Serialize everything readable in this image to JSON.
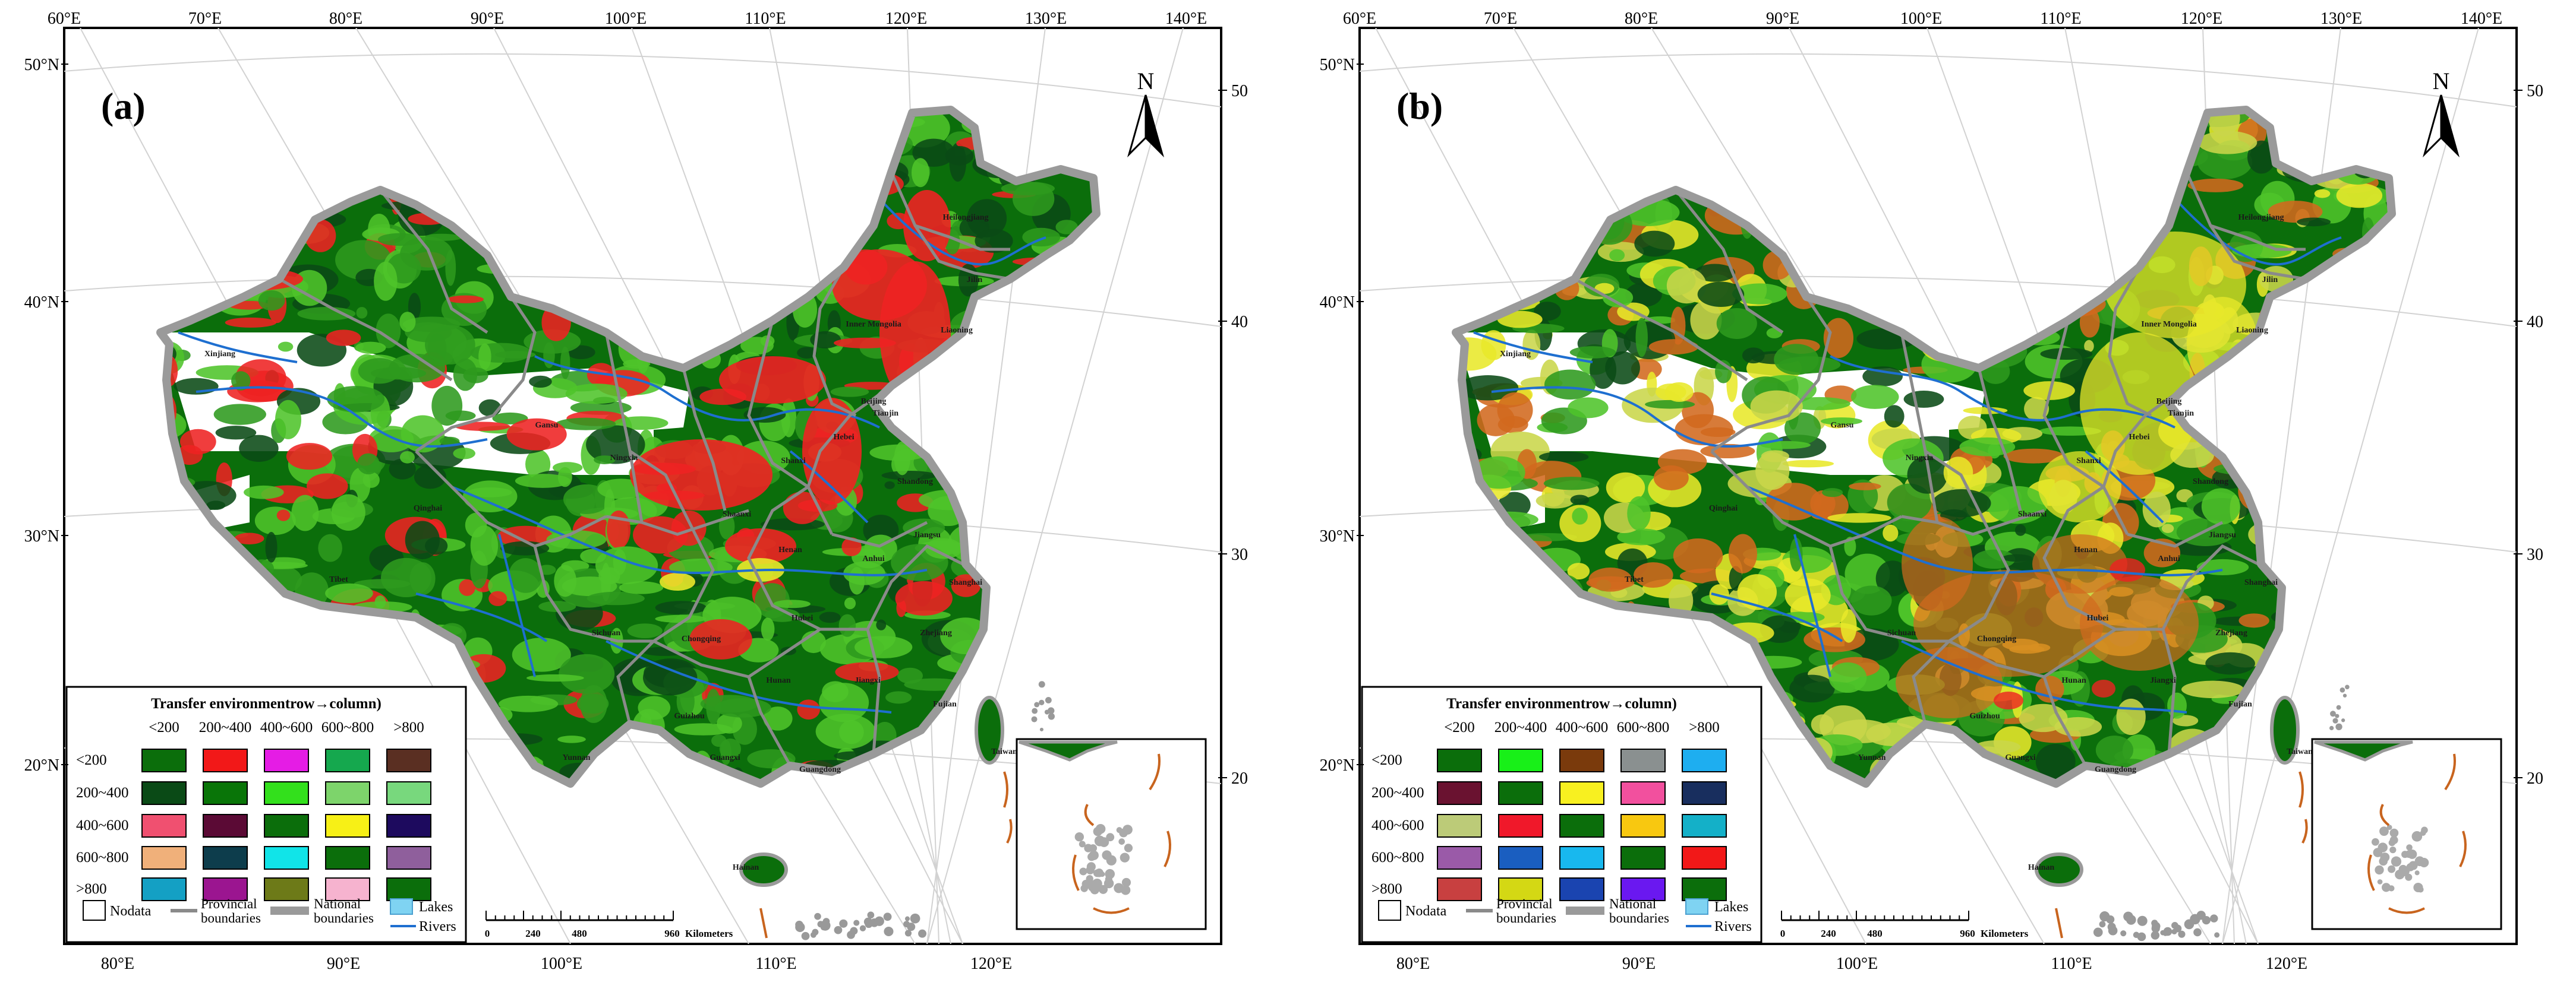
{
  "panels": [
    {
      "id": "a",
      "label": "(a)",
      "north": "N",
      "matrix": [
        [
          "#0b6e0b",
          "#f21818",
          "#e51ce5",
          "#15a84e",
          "#5a2f22"
        ],
        [
          "#0a4a16",
          "#097508",
          "#33e01c",
          "#7dd46b",
          "#78d87d"
        ],
        [
          "#f05070",
          "#5b0a35",
          "#0b6e0b",
          "#f7f016",
          "#1d0a5e"
        ],
        [
          "#f0b07a",
          "#0d3d4c",
          "#11e4e8",
          "#0b6e0b",
          "#8f5f9c"
        ],
        [
          "#14a0c4",
          "#9b1590",
          "#6d7a18",
          "#f6b3cf",
          "#0b6e0b"
        ]
      ]
    },
    {
      "id": "b",
      "label": "(b)",
      "north": "N",
      "matrix": [
        [
          "#0b6e0b",
          "#18f018",
          "#7a3a0c",
          "#8a9090",
          "#1eaef0"
        ],
        [
          "#6a1230",
          "#0b6e0b",
          "#f8f020",
          "#f2509e",
          "#182e5e"
        ],
        [
          "#bccb78",
          "#f0182a",
          "#0b6e0b",
          "#f8c810",
          "#14b0c8"
        ],
        [
          "#9a5aa8",
          "#1a5ec0",
          "#18b8ee",
          "#0b6e0b",
          "#f21818"
        ],
        [
          "#c84040",
          "#d4d814",
          "#1a44b0",
          "#6a18f0",
          "#0b6e0b"
        ]
      ]
    }
  ],
  "map": {
    "colors": {
      "green_dark": "#0b6e0b",
      "green_mid": "#2d9a1e",
      "green_light": "#4fc42a",
      "red": "#ee2222",
      "yellow": "#e8e82a",
      "orange": "#d2691e",
      "river": "#1e6fd0",
      "border": "#8a8a8a",
      "national": "#9a9a9a"
    },
    "top_lon": [
      "60°E",
      "70°E",
      "80°E",
      "90°E",
      "100°E",
      "110°E",
      "120°E",
      "130°E",
      "140°E"
    ],
    "bottom_lon": [
      "80°E",
      "90°E",
      "100°E",
      "110°E",
      "120°E"
    ],
    "left_lat": [
      "50°N",
      "40°N",
      "30°N",
      "20°N"
    ],
    "right_lat": [
      "50°N",
      "40°N",
      "30°N",
      "20°N"
    ],
    "provinces": [
      "Heilongjiang",
      "Jilin",
      "Liaoning",
      "Inner Mongolia",
      "Beijing",
      "Tianjin",
      "Hebei",
      "Shanxi",
      "Shandong",
      "Xinjiang",
      "Gansu",
      "Ningxia",
      "Shaanxi",
      "Henan",
      "Jiangsu",
      "Anhui",
      "Shanghai",
      "Hubei",
      "Zhejiang",
      "Sichuan",
      "Chongqing",
      "Hunan",
      "Jiangxi",
      "Fujian",
      "Guizhou",
      "Guangxi",
      "Yunnan",
      "Guangdong",
      "Taiwan",
      "Hainan",
      "Tibet",
      "Qinghai"
    ]
  },
  "legend": {
    "title": "Transfer environmentrow→column)",
    "columns": [
      "<200",
      "200~400",
      "400~600",
      "600~800",
      ">800"
    ],
    "rows": [
      "<200",
      "200~400",
      "400~600",
      "600~800",
      ">800"
    ],
    "nodata": "Nodata",
    "provincial": [
      "Provincial",
      "boundaries"
    ],
    "national": [
      "National",
      "boundaries"
    ],
    "lakes": "Lakes",
    "rivers": "Rivers",
    "lake_color": "#7fd3f2"
  },
  "scale": {
    "ticks": [
      "0",
      "240",
      "480",
      "960"
    ],
    "unit": "Kilometers"
  }
}
